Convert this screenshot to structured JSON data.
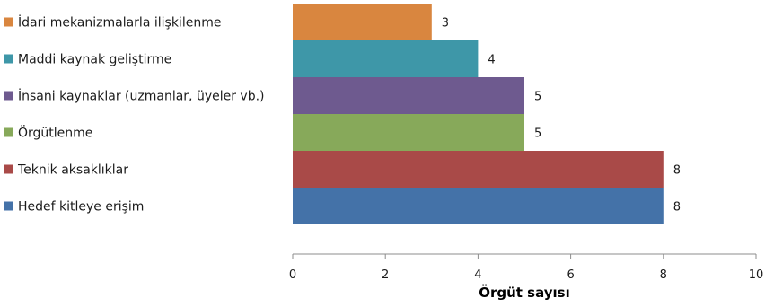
{
  "chart_data": {
    "type": "bar",
    "orientation": "horizontal",
    "categories": [
      "Hedef kitleye erişim",
      "Teknik aksaklıklar",
      "Örgütlenme",
      "İnsani kaynaklar (uzmanlar, üyeler vb.)",
      "Maddi kaynak geliştirme",
      "İdari mekanizmalarla ilişkilenme"
    ],
    "values": [
      8,
      8,
      5,
      5,
      4,
      3
    ],
    "colors": [
      "#4472a8",
      "#a94a48",
      "#87a95a",
      "#6e5a8f",
      "#3e97a8",
      "#d9863f"
    ],
    "data_labels": [
      "8",
      "8",
      "5",
      "5",
      "4",
      "3"
    ],
    "xlabel": "Örgüt sayısı",
    "ylabel": "",
    "xlim": [
      0,
      10
    ],
    "x_ticks": [
      "0",
      "2",
      "4",
      "6",
      "8",
      "10"
    ],
    "grid": false,
    "legend_placement": "left"
  }
}
